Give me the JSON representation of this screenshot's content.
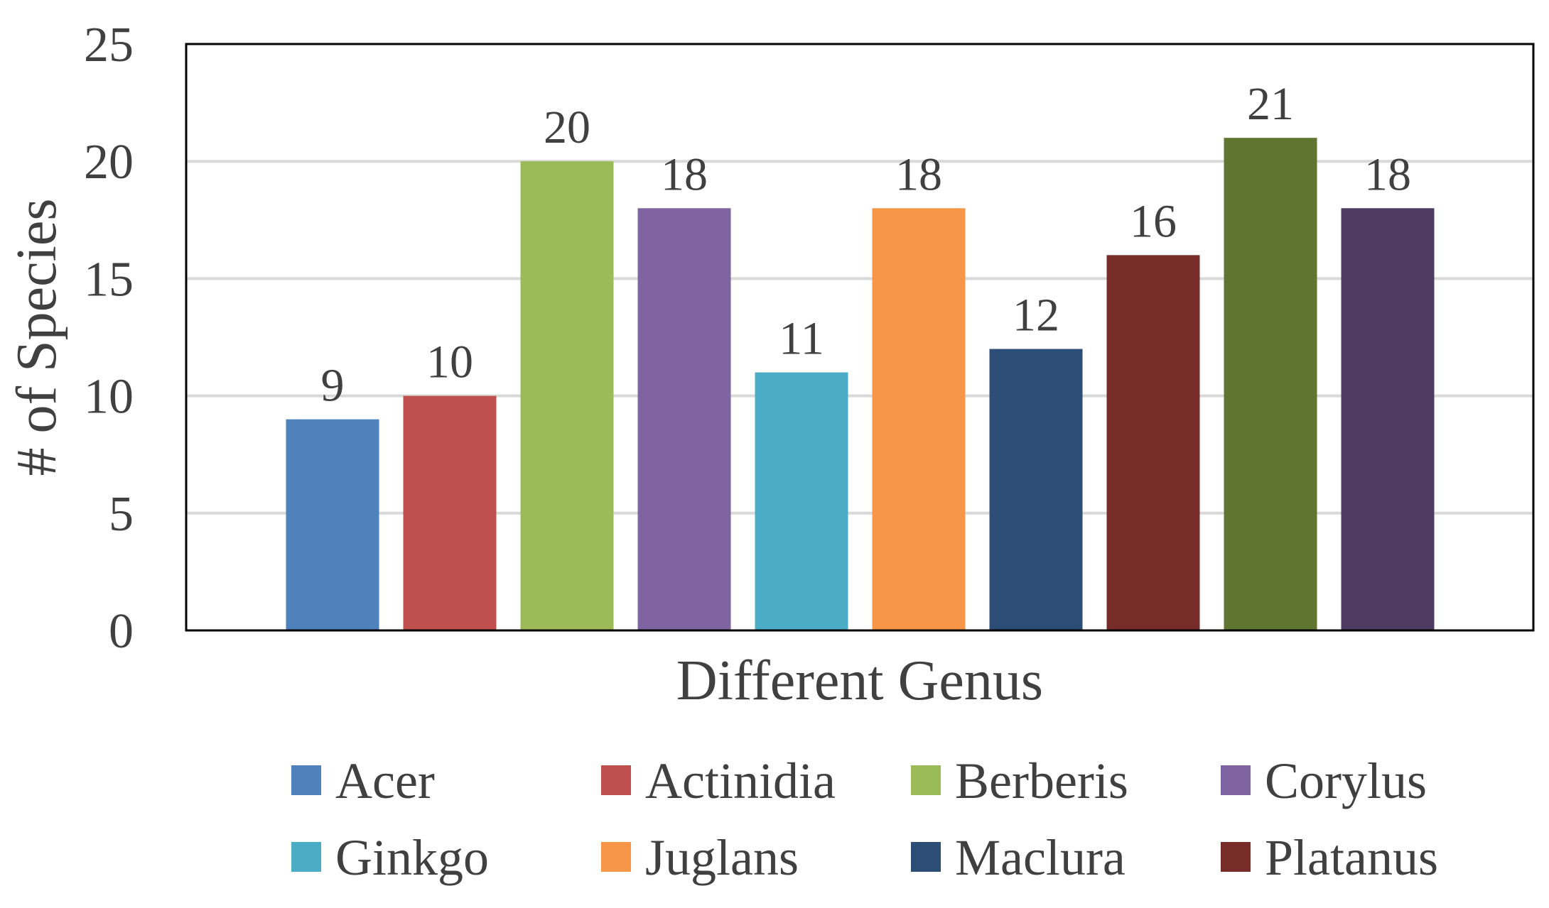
{
  "chart_data": {
    "type": "bar",
    "xlabel": "Different Genus",
    "ylabel": "# of  Species",
    "ylim": [
      0,
      25
    ],
    "yticks": [
      0,
      5,
      10,
      15,
      20,
      25
    ],
    "grid": true,
    "legend_position": "bottom",
    "series": [
      {
        "name": "Acer",
        "value": 9,
        "color": "#4F81BD"
      },
      {
        "name": "Actinidia",
        "value": 10,
        "color": "#C0504D"
      },
      {
        "name": "Berberis",
        "value": 20,
        "color": "#9BBB59"
      },
      {
        "name": "Corylus",
        "value": 18,
        "color": "#8064A2"
      },
      {
        "name": "Ginkgo",
        "value": 11,
        "color": "#4BACC6"
      },
      {
        "name": "Juglans",
        "value": 18,
        "color": "#F79646"
      },
      {
        "name": "Maclura",
        "value": 12,
        "color": "#2C4D75"
      },
      {
        "name": "Platanus",
        "value": 16,
        "color": "#772C2A"
      },
      {
        "name": "",
        "value": 21,
        "color": "#5F7530"
      },
      {
        "name": "",
        "value": 18,
        "color": "#4D3B62"
      }
    ]
  }
}
